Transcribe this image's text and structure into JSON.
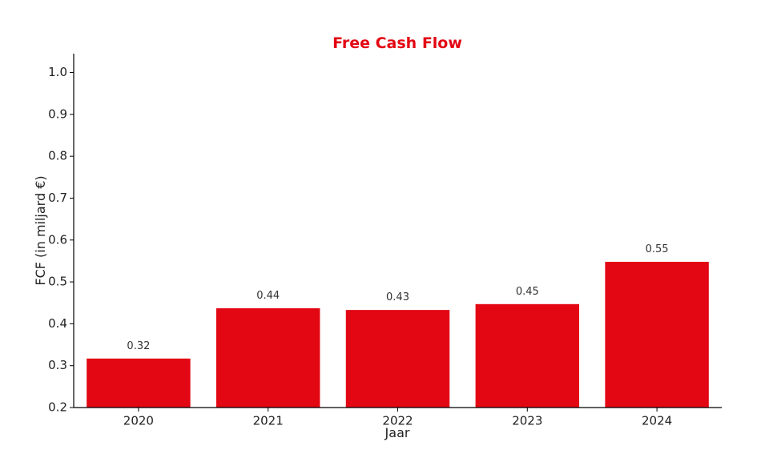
{
  "chart_data": {
    "type": "bar",
    "title": "Free Cash Flow",
    "xlabel": "Jaar",
    "ylabel": "FCF (in miljard €)",
    "categories": [
      "2020",
      "2021",
      "2022",
      "2023",
      "2024"
    ],
    "values": [
      0.317,
      0.437,
      0.433,
      0.447,
      0.548
    ],
    "data_labels": [
      "0.32",
      "0.44",
      "0.43",
      "0.45",
      "0.55"
    ],
    "ylim": [
      0.2,
      1.045
    ],
    "yticks": [
      0.2,
      0.3,
      0.4,
      0.5,
      0.6,
      0.7,
      0.8,
      0.9,
      1.0
    ],
    "ytick_labels": [
      "0.2",
      "0.3",
      "0.4",
      "0.5",
      "0.6",
      "0.7",
      "0.8",
      "0.9",
      "1.0"
    ],
    "grid": false,
    "colors": {
      "bar": "#e30613",
      "title": "#e30613",
      "axis": "#000000"
    }
  }
}
